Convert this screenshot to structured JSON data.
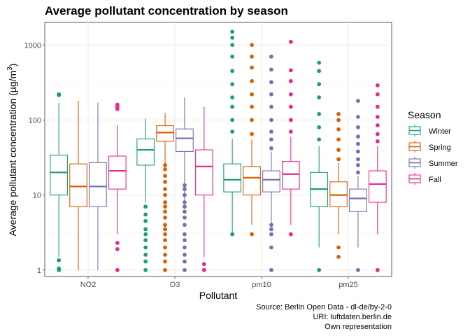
{
  "chart_data": {
    "type": "boxplot",
    "title": "Average pollutant concentration by season",
    "xlabel": "Pollutant",
    "ylabel_main": "Average pollutant concentration (µg/m",
    "ylabel_sup": "3",
    "ylabel_end": ")",
    "y_scale": "log10",
    "ylim": [
      0.82,
      2000
    ],
    "y_ticks": [
      {
        "value": 1,
        "label": "1"
      },
      {
        "value": 10,
        "label": "10"
      },
      {
        "value": 100,
        "label": "100"
      },
      {
        "value": 1000,
        "label": "1000"
      }
    ],
    "grid": true,
    "legend": {
      "title": "Season",
      "position": "right"
    },
    "categories": [
      "NO2",
      "O3",
      "pm10",
      "pm25"
    ],
    "series": [
      {
        "name": "Winter",
        "color": "#1b9e77",
        "boxes": [
          {
            "lower_whisker": 1.5,
            "q1": 10,
            "median": 20,
            "q3": 34,
            "upper_whisker": 170,
            "outliers": [
              1,
              1.05,
              1.35,
              215,
              220
            ]
          },
          {
            "lower_whisker": 8,
            "q1": 25,
            "median": 40,
            "q3": 56,
            "upper_whisker": 105,
            "outliers": [
              1,
              1.3,
              1.6,
              2,
              2.5,
              3,
              3.5,
              4.5,
              5.5,
              7
            ]
          },
          {
            "lower_whisker": 3.2,
            "q1": 11,
            "median": 16,
            "q3": 26,
            "upper_whisker": 56,
            "outliers": [
              3,
              70,
              100,
              150,
              200,
              300,
              450,
              700,
              1000,
              1250,
              1500
            ]
          },
          {
            "lower_whisker": 2,
            "q1": 7,
            "median": 12,
            "q3": 20,
            "upper_whisker": 45,
            "outliers": [
              1,
              55,
              80,
              120,
              200,
              300,
              450,
              580
            ]
          }
        ]
      },
      {
        "name": "Spring",
        "color": "#d95f02",
        "boxes": [
          {
            "lower_whisker": 1,
            "q1": 7,
            "median": 13,
            "q3": 26,
            "upper_whisker": 180,
            "outliers": []
          },
          {
            "lower_whisker": 25,
            "q1": 52,
            "median": 68,
            "q3": 84,
            "upper_whisker": 125,
            "outliers": [
              1,
              1.3,
              1.6,
              2,
              2.5,
              3,
              3.5,
              4,
              5,
              6,
              7,
              8,
              10,
              12,
              15,
              18,
              22,
              25
            ]
          },
          {
            "lower_whisker": 4,
            "q1": 10,
            "median": 17,
            "q3": 24,
            "upper_whisker": 55,
            "outliers": [
              3,
              65,
              100,
              150,
              220,
              330,
              500,
              700,
              1000
            ]
          },
          {
            "lower_whisker": 3,
            "q1": 7,
            "median": 10,
            "q3": 15,
            "upper_whisker": 27,
            "outliers": [
              1.5,
              2,
              30,
              40,
              55,
              75,
              100,
              120
            ]
          }
        ]
      },
      {
        "name": "Summer",
        "color": "#7570b3",
        "boxes": [
          {
            "lower_whisker": 1,
            "q1": 7,
            "median": 13,
            "q3": 27,
            "upper_whisker": 170,
            "outliers": []
          },
          {
            "lower_whisker": 7,
            "q1": 38,
            "median": 57,
            "q3": 76,
            "upper_whisker": 200,
            "outliers": [
              1,
              1.3,
              1.6,
              2,
              2.5,
              3,
              4,
              5,
              6,
              7,
              8,
              10,
              12,
              13.5
            ]
          },
          {
            "lower_whisker": 4,
            "q1": 11,
            "median": 16,
            "q3": 21,
            "upper_whisker": 38,
            "outliers": [
              1,
              2,
              3,
              3.5,
              4,
              42,
              55,
              70,
              100,
              150,
              220,
              320,
              470,
              700
            ]
          },
          {
            "lower_whisker": 2,
            "q1": 6,
            "median": 9,
            "q3": 12,
            "upper_whisker": 18,
            "outliers": [
              1,
              20,
              25,
              30,
              38,
              48,
              60,
              80,
              110,
              180
            ]
          }
        ]
      },
      {
        "name": "Fall",
        "color": "#e7298a",
        "boxes": [
          {
            "lower_whisker": 3,
            "q1": 12,
            "median": 21,
            "q3": 33,
            "upper_whisker": 85,
            "outliers": [
              1,
              1.9,
              2.3,
              140,
              150,
              160
            ]
          },
          {
            "lower_whisker": 1.5,
            "q1": 10,
            "median": 24,
            "q3": 40,
            "upper_whisker": 150,
            "outliers": [
              1,
              1.2
            ]
          },
          {
            "lower_whisker": 4,
            "q1": 12,
            "median": 19,
            "q3": 28,
            "upper_whisker": 60,
            "outliers": [
              3,
              70,
              100,
              150,
              220,
              330,
              460,
              1100
            ]
          },
          {
            "lower_whisker": 3,
            "q1": 8,
            "median": 14,
            "q3": 21,
            "upper_whisker": 45,
            "outliers": [
              1,
              52,
              65,
              85,
              110,
              150,
              220,
              290
            ]
          }
        ]
      }
    ]
  },
  "caption": {
    "line1": "Source: Berlin Open Data - dl-de/by-2-0",
    "line2": "URI: luftdaten.berlin.de",
    "line3": "Own representation"
  }
}
